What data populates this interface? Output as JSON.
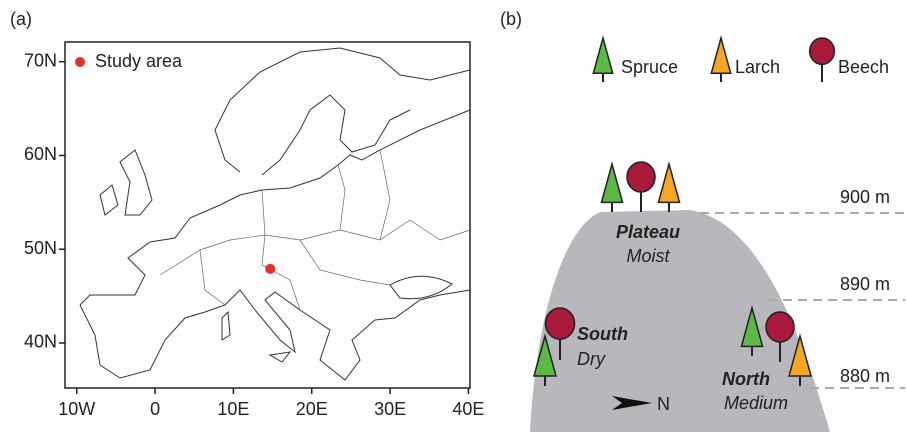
{
  "panel_a": {
    "label": "(a)",
    "legend": "Study area",
    "marker_color": "#e8302a",
    "study_area": {
      "lon": 14.7,
      "lat": 47.9
    },
    "xlim": [
      -11.5,
      40.2
    ],
    "ylim": [
      35.2,
      72.1
    ],
    "xticks": [
      {
        "value": -10,
        "label": "10W"
      },
      0,
      {
        "value": 10,
        "label": "10E"
      },
      {
        "value": 20,
        "label": "20E"
      },
      {
        "value": 30,
        "label": "30E"
      },
      {
        "value": 40,
        "label": "40E"
      }
    ],
    "yticks": [
      {
        "value": 70,
        "label": "70N"
      },
      {
        "value": 60,
        "label": "60N"
      },
      {
        "value": 50,
        "label": "50N"
      },
      {
        "value": 40,
        "label": "40N"
      }
    ]
  },
  "panel_b": {
    "label": "(b)",
    "species": [
      {
        "name": "Spruce",
        "color": "#5cb947"
      },
      {
        "name": "Larch",
        "color": "#f5a623"
      },
      {
        "name": "Beech",
        "color": "#a8193a"
      }
    ],
    "elevations": [
      "900 m",
      "890 m",
      "880 m"
    ],
    "sites": [
      {
        "name": "Plateau",
        "moisture": "Moist"
      },
      {
        "name": "South",
        "moisture": "Dry"
      },
      {
        "name": "North",
        "moisture": "Medium"
      }
    ],
    "north_arrow": "N"
  }
}
